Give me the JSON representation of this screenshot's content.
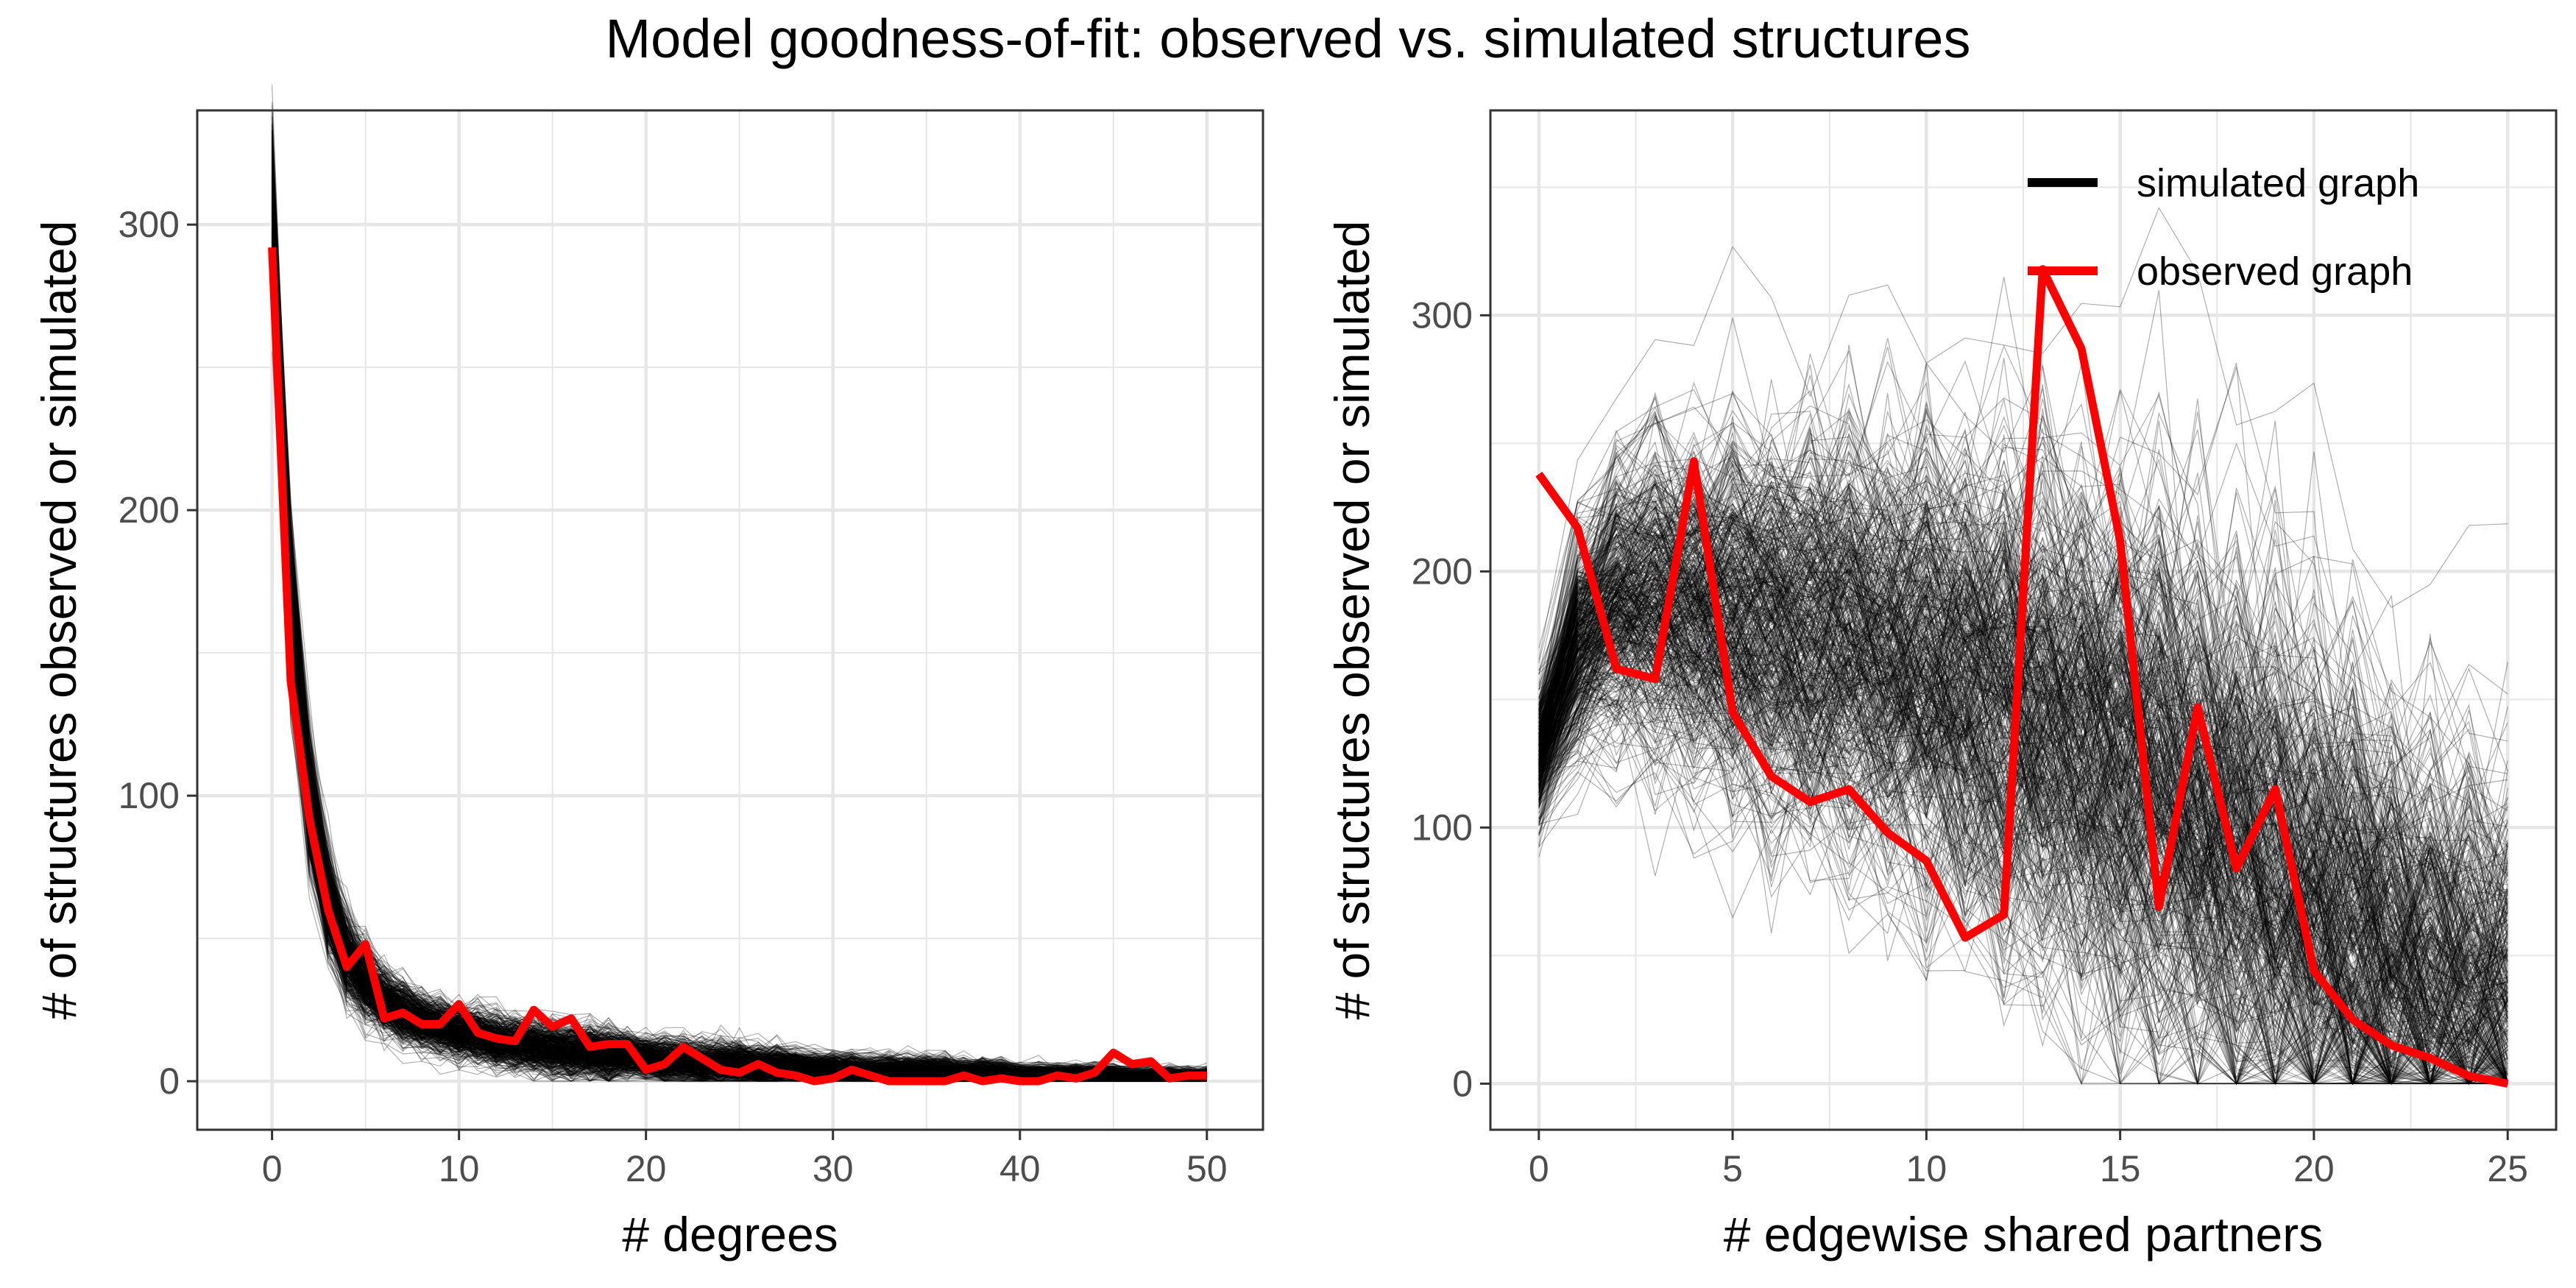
{
  "title": "Model goodness-of-fit: observed vs. simulated structures",
  "colors": {
    "observed": "#ff0000",
    "simulated": "#000000",
    "grid": "#e6e6e6",
    "axis_text": "#4d4d4d"
  },
  "legend": {
    "position": "top-right",
    "items": [
      "simulated graph",
      "observed graph"
    ]
  },
  "chart_data": [
    {
      "type": "line",
      "xlabel": "# degrees",
      "ylabel": "# of structures observed or simulated",
      "xlim": [
        -4,
        53
      ],
      "ylim": [
        -17,
        340
      ],
      "xticks": [
        0,
        10,
        20,
        30,
        40,
        50
      ],
      "yticks": [
        0,
        100,
        200,
        300
      ],
      "grid": true,
      "series": [
        {
          "name": "observed graph",
          "x": [
            0,
            1,
            2,
            3,
            4,
            5,
            6,
            7,
            8,
            9,
            10,
            11,
            12,
            13,
            14,
            15,
            16,
            17,
            18,
            19,
            20,
            21,
            22,
            23,
            24,
            25,
            26,
            27,
            28,
            29,
            30,
            31,
            32,
            33,
            34,
            35,
            36,
            37,
            38,
            39,
            40,
            41,
            42,
            43,
            44,
            45,
            46,
            47,
            48,
            49,
            50
          ],
          "y": [
            292,
            140,
            92,
            60,
            40,
            48,
            22,
            24,
            20,
            20,
            27,
            17,
            15,
            14,
            25,
            19,
            22,
            12,
            13,
            13,
            4,
            6,
            12,
            8,
            4,
            3,
            6,
            3,
            2,
            0,
            1,
            4,
            2,
            0,
            0,
            0,
            0,
            2,
            0,
            1,
            0,
            0,
            2,
            1,
            3,
            10,
            6,
            7,
            1,
            2,
            2
          ]
        },
        {
          "name": "simulated graph",
          "ensemble": "approximately 500 simulated degree distributions",
          "x": [
            0,
            1,
            2,
            3,
            4,
            5,
            6,
            7,
            8,
            9,
            10,
            11,
            12,
            13,
            14,
            15,
            16,
            17,
            18,
            19,
            20,
            21,
            22,
            23,
            24,
            25,
            26,
            27,
            28,
            29,
            30,
            31,
            32,
            33,
            34,
            35,
            36,
            37,
            38,
            39,
            40,
            41,
            42,
            43,
            44,
            45,
            46,
            47,
            48,
            49,
            50
          ],
          "mean": [
            302,
            165,
            98,
            63,
            44,
            34,
            28,
            24,
            21,
            19,
            17,
            16,
            14,
            13,
            12,
            11,
            10,
            10,
            9,
            9,
            8,
            7,
            7,
            6,
            6,
            6,
            5,
            5,
            5,
            4,
            4,
            4,
            3,
            3,
            3,
            3,
            3,
            2,
            2,
            2,
            2,
            2,
            2,
            2,
            2,
            2,
            1,
            1,
            1,
            1,
            1
          ],
          "spread": [
            18,
            16,
            12,
            10,
            8,
            7,
            6,
            6,
            5,
            5,
            5,
            5,
            5,
            5,
            5,
            5,
            5,
            5,
            5,
            4,
            4,
            4,
            4,
            4,
            4,
            4,
            4,
            4,
            3,
            3,
            3,
            3,
            3,
            3,
            3,
            3,
            3,
            3,
            3,
            3,
            2,
            2,
            2,
            2,
            2,
            2,
            2,
            2,
            2,
            2,
            2
          ]
        }
      ]
    },
    {
      "type": "line",
      "xlabel": "# edgewise shared partners",
      "ylabel": "# of structures observed or simulated",
      "xlim": [
        -1.25,
        26.25
      ],
      "ylim": [
        -18,
        380
      ],
      "xticks": [
        0,
        5,
        10,
        15,
        20,
        25
      ],
      "yticks": [
        0,
        100,
        200,
        300
      ],
      "grid": true,
      "series": [
        {
          "name": "observed graph",
          "x": [
            0,
            1,
            2,
            3,
            4,
            5,
            6,
            7,
            8,
            9,
            10,
            11,
            12,
            13,
            14,
            15,
            16,
            17,
            18,
            19,
            20,
            21,
            22,
            23,
            24,
            25
          ],
          "y": [
            238,
            217,
            162,
            158,
            243,
            145,
            120,
            110,
            115,
            98,
            87,
            57,
            66,
            318,
            287,
            212,
            69,
            147,
            84,
            115,
            44,
            25,
            15,
            10,
            3,
            0
          ]
        },
        {
          "name": "simulated graph",
          "ensemble": "approximately 500 simulated edgewise shared partner distributions",
          "x": [
            0,
            1,
            2,
            3,
            4,
            5,
            6,
            7,
            8,
            9,
            10,
            11,
            12,
            13,
            14,
            15,
            16,
            17,
            18,
            19,
            20,
            21,
            22,
            23,
            24,
            25
          ],
          "mean": [
            128,
            172,
            188,
            188,
            186,
            183,
            180,
            177,
            173,
            168,
            163,
            157,
            150,
            143,
            135,
            125,
            115,
            103,
            91,
            78,
            66,
            54,
            44,
            35,
            27,
            20
          ],
          "spread": [
            15,
            24,
            30,
            35,
            38,
            40,
            42,
            44,
            46,
            48,
            50,
            52,
            54,
            56,
            58,
            60,
            62,
            63,
            64,
            64,
            64,
            62,
            60,
            58,
            56,
            54
          ]
        }
      ]
    }
  ]
}
